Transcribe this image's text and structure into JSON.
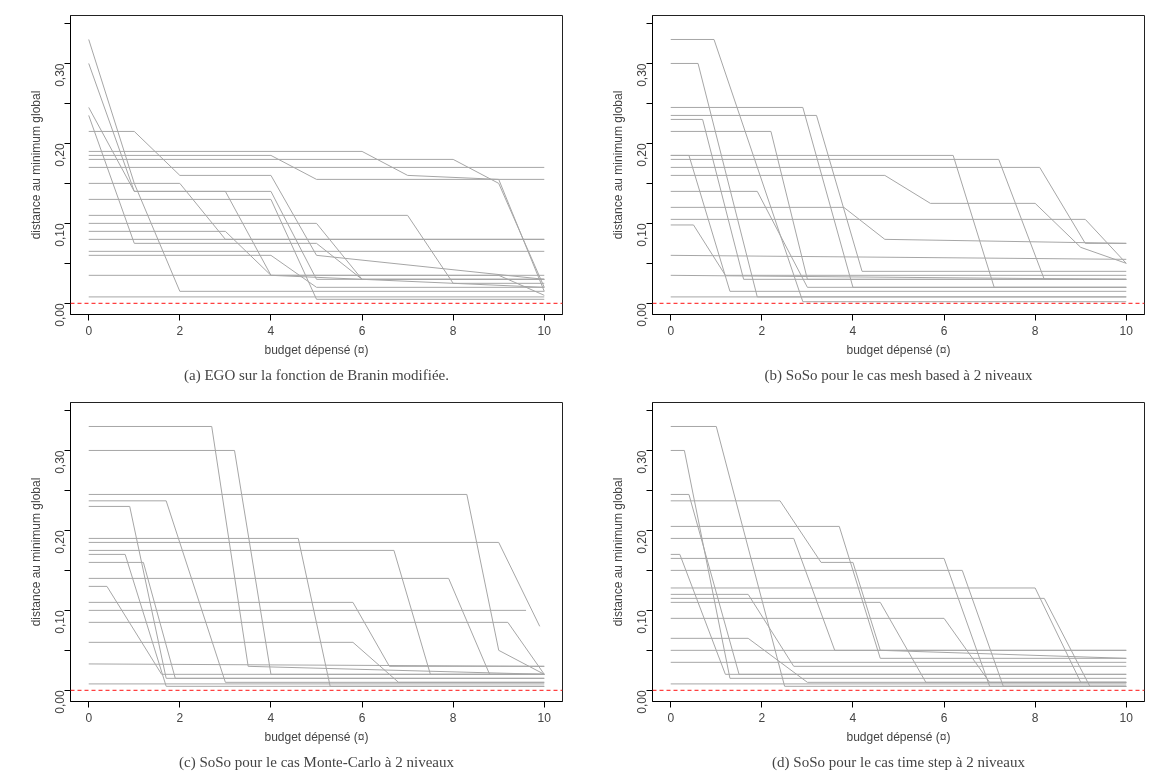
{
  "chart_data": [
    {
      "type": "line",
      "title": "(a) EGO sur la fonction de Branin modifiée.",
      "xlabel": "budget dépensé (¤)",
      "ylabel": "distance au minimum global",
      "xlim": [
        -0.4,
        10.4
      ],
      "ylim": [
        -0.014,
        0.36
      ],
      "xticks": [
        0,
        2,
        4,
        6,
        8,
        10
      ],
      "yticks": [
        {
          "value": 0,
          "label": "0,00"
        },
        {
          "value": 0.05,
          "label": null
        },
        {
          "value": 0.1,
          "label": "0,10"
        },
        {
          "value": 0.15,
          "label": null
        },
        {
          "value": 0.2,
          "label": "0,20"
        },
        {
          "value": 0.25,
          "label": null
        },
        {
          "value": 0.3,
          "label": "0,30"
        },
        {
          "value": 0.35,
          "label": null
        }
      ],
      "grid": false,
      "marker": "none",
      "line_style": "solid",
      "ref_lines": [
        {
          "axis": "y",
          "value": 0,
          "label": null,
          "color": "#ff4040",
          "line_style": "dashed"
        }
      ],
      "series": [
        {
          "color": "#a6a6a6",
          "x": [
            0,
            1,
            2,
            10
          ],
          "values": [
            0.33,
            0.15,
            0.015,
            0.015
          ]
        },
        {
          "color": "#a6a6a6",
          "x": [
            0,
            1,
            3,
            4,
            10
          ],
          "values": [
            0.3,
            0.14,
            0.14,
            0.035,
            0.02
          ]
        },
        {
          "color": "#a6a6a6",
          "x": [
            0,
            1,
            4,
            5,
            10
          ],
          "values": [
            0.245,
            0.14,
            0.14,
            0.03,
            0.03
          ]
        },
        {
          "color": "#a6a6a6",
          "x": [
            0,
            1,
            5,
            6,
            10
          ],
          "values": [
            0.235,
            0.075,
            0.075,
            0.03,
            0.03
          ]
        },
        {
          "color": "#a6a6a6",
          "x": [
            0,
            1,
            2,
            4,
            5,
            10
          ],
          "values": [
            0.215,
            0.215,
            0.16,
            0.16,
            0.06,
            0.03
          ]
        },
        {
          "color": "#a6a6a6",
          "x": [
            0,
            6,
            7,
            9,
            10
          ],
          "values": [
            0.19,
            0.19,
            0.16,
            0.155,
            0.015
          ]
        },
        {
          "color": "#a6a6a6",
          "x": [
            0,
            10
          ],
          "values": [
            0.17,
            0.17
          ]
        },
        {
          "color": "#a6a6a6",
          "x": [
            0,
            4,
            5,
            10
          ],
          "values": [
            0.185,
            0.185,
            0.155,
            0.155
          ]
        },
        {
          "color": "#a6a6a6",
          "x": [
            0,
            8,
            9,
            10
          ],
          "values": [
            0.18,
            0.18,
            0.15,
            0.02
          ]
        },
        {
          "color": "#a6a6a6",
          "x": [
            0,
            4,
            5,
            10
          ],
          "values": [
            0.13,
            0.13,
            0.005,
            0.005
          ]
        },
        {
          "color": "#a6a6a6",
          "x": [
            0,
            7,
            8,
            10
          ],
          "values": [
            0.11,
            0.11,
            0.025,
            0.025
          ]
        },
        {
          "color": "#a6a6a6",
          "x": [
            0,
            5,
            6,
            10
          ],
          "values": [
            0.1,
            0.1,
            0.03,
            0.03
          ]
        },
        {
          "color": "#a6a6a6",
          "x": [
            0,
            3,
            4,
            10
          ],
          "values": [
            0.09,
            0.09,
            0.035,
            0.035
          ]
        },
        {
          "color": "#a6a6a6",
          "x": [
            0,
            10
          ],
          "values": [
            0.08,
            0.08
          ]
        },
        {
          "color": "#a6a6a6",
          "x": [
            0,
            10
          ],
          "values": [
            0.065,
            0.065
          ]
        },
        {
          "color": "#a6a6a6",
          "x": [
            0,
            4,
            5,
            10
          ],
          "values": [
            0.06,
            0.06,
            0.02,
            0.02
          ]
        },
        {
          "color": "#a6a6a6",
          "x": [
            0,
            9,
            10
          ],
          "values": [
            0.035,
            0.035,
            0.01
          ]
        },
        {
          "color": "#a6a6a6",
          "x": [
            0,
            2,
            3,
            10
          ],
          "values": [
            0.15,
            0.15,
            0.08,
            0.08
          ]
        },
        {
          "color": "#a6a6a6",
          "x": [
            0,
            10
          ],
          "values": [
            0.008,
            0.008
          ]
        }
      ]
    },
    {
      "type": "line",
      "title": "(b) SoSo pour le cas mesh based à 2 niveaux",
      "xlabel": "budget dépensé (¤)",
      "ylabel": "distance au minimum global",
      "xlim": [
        -0.4,
        10.4
      ],
      "ylim": [
        -0.014,
        0.36
      ],
      "xticks": [
        0,
        2,
        4,
        6,
        8,
        10
      ],
      "yticks": [
        {
          "value": 0,
          "label": "0,00"
        },
        {
          "value": 0.05,
          "label": null
        },
        {
          "value": 0.1,
          "label": "0,10"
        },
        {
          "value": 0.15,
          "label": null
        },
        {
          "value": 0.2,
          "label": "0,20"
        },
        {
          "value": 0.25,
          "label": null
        },
        {
          "value": 0.3,
          "label": "0,30"
        },
        {
          "value": 0.35,
          "label": null
        }
      ],
      "grid": false,
      "marker": "none",
      "line_style": "solid",
      "ref_lines": [
        {
          "axis": "y",
          "value": 0,
          "label": null,
          "color": "#ff4040",
          "line_style": "dashed"
        }
      ],
      "series": [
        {
          "color": "#a6a6a6",
          "x": [
            0,
            0.95,
            2.9,
            10
          ],
          "values": [
            0.33,
            0.33,
            0.002,
            0.002
          ]
        },
        {
          "color": "#a6a6a6",
          "x": [
            0,
            0.6,
            1.9,
            10
          ],
          "values": [
            0.3,
            0.3,
            0.008,
            0.008
          ]
        },
        {
          "color": "#a6a6a6",
          "x": [
            0,
            2.9,
            4,
            10
          ],
          "values": [
            0.245,
            0.245,
            0.02,
            0.02
          ]
        },
        {
          "color": "#a6a6a6",
          "x": [
            0,
            3.2,
            4.2,
            10
          ],
          "values": [
            0.235,
            0.235,
            0.04,
            0.04
          ]
        },
        {
          "color": "#a6a6a6",
          "x": [
            0,
            0.7,
            1.6,
            10
          ],
          "values": [
            0.23,
            0.23,
            0.03,
            0.03
          ]
        },
        {
          "color": "#a6a6a6",
          "x": [
            0,
            2.2,
            3,
            10
          ],
          "values": [
            0.215,
            0.215,
            0.03,
            0.03
          ]
        },
        {
          "color": "#a6a6a6",
          "x": [
            0,
            6.2,
            7.1,
            10
          ],
          "values": [
            0.185,
            0.185,
            0.02,
            0.02
          ]
        },
        {
          "color": "#a6a6a6",
          "x": [
            0,
            4.7,
            5.7,
            8,
            9,
            10
          ],
          "values": [
            0.16,
            0.16,
            0.125,
            0.125,
            0.07,
            0.05
          ]
        },
        {
          "color": "#a6a6a6",
          "x": [
            0,
            8.1,
            9.1,
            10
          ],
          "values": [
            0.17,
            0.17,
            0.075,
            0.075
          ]
        },
        {
          "color": "#a6a6a6",
          "x": [
            0,
            7.2,
            8.2,
            10
          ],
          "values": [
            0.18,
            0.18,
            0.03,
            0.03
          ]
        },
        {
          "color": "#a6a6a6",
          "x": [
            0,
            0.4,
            1.3,
            10
          ],
          "values": [
            0.185,
            0.185,
            0.015,
            0.015
          ]
        },
        {
          "color": "#a6a6a6",
          "x": [
            0,
            1.9,
            3,
            10
          ],
          "values": [
            0.14,
            0.14,
            0.02,
            0.02
          ]
        },
        {
          "color": "#a6a6a6",
          "x": [
            0,
            9.1,
            10
          ],
          "values": [
            0.105,
            0.105,
            0.05
          ]
        },
        {
          "color": "#a6a6a6",
          "x": [
            0,
            3.8,
            4.7,
            10
          ],
          "values": [
            0.12,
            0.12,
            0.08,
            0.075
          ]
        },
        {
          "color": "#a6a6a6",
          "x": [
            0,
            0.5,
            1.2,
            10
          ],
          "values": [
            0.098,
            0.098,
            0.035,
            0.035
          ]
        },
        {
          "color": "#a6a6a6",
          "x": [
            0,
            10
          ],
          "values": [
            0.06,
            0.055
          ]
        },
        {
          "color": "#a6a6a6",
          "x": [
            0,
            10
          ],
          "values": [
            0.035,
            0.03
          ]
        },
        {
          "color": "#a6a6a6",
          "x": [
            0,
            10
          ],
          "values": [
            0.008,
            0.008
          ]
        }
      ]
    },
    {
      "type": "line",
      "title": "(c) SoSo pour le cas Monte-Carlo à 2 niveaux",
      "xlabel": "budget dépensé (¤)",
      "ylabel": "distance au minimum global",
      "xlim": [
        -0.4,
        10.4
      ],
      "ylim": [
        -0.014,
        0.36
      ],
      "xticks": [
        0,
        2,
        4,
        6,
        8,
        10
      ],
      "yticks": [
        {
          "value": 0,
          "label": "0,00"
        },
        {
          "value": 0.05,
          "label": null
        },
        {
          "value": 0.1,
          "label": "0,10"
        },
        {
          "value": 0.15,
          "label": null
        },
        {
          "value": 0.2,
          "label": "0,20"
        },
        {
          "value": 0.25,
          "label": null
        },
        {
          "value": 0.3,
          "label": "0,30"
        },
        {
          "value": 0.35,
          "label": null
        }
      ],
      "grid": false,
      "marker": "none",
      "line_style": "solid",
      "ref_lines": [
        {
          "axis": "y",
          "value": 0,
          "label": null,
          "color": "#ff4040",
          "line_style": "dashed"
        }
      ],
      "series": [
        {
          "color": "#a6a6a6",
          "x": [
            0,
            2.7,
            3.5,
            10
          ],
          "values": [
            0.33,
            0.33,
            0.03,
            0.02
          ]
        },
        {
          "color": "#a6a6a6",
          "x": [
            0,
            3.2,
            4,
            10
          ],
          "values": [
            0.3,
            0.3,
            0.02,
            0.02
          ]
        },
        {
          "color": "#a6a6a6",
          "x": [
            0,
            8.3,
            9,
            10
          ],
          "values": [
            0.245,
            0.245,
            0.05,
            0.02
          ]
        },
        {
          "color": "#a6a6a6",
          "x": [
            0,
            1.7,
            3,
            10
          ],
          "values": [
            0.237,
            0.237,
            0.01,
            0.01
          ]
        },
        {
          "color": "#a6a6a6",
          "x": [
            0,
            0.9,
            1.7,
            10
          ],
          "values": [
            0.23,
            0.23,
            0.015,
            0.015
          ]
        },
        {
          "color": "#a6a6a6",
          "x": [
            0,
            9,
            9.9
          ],
          "values": [
            0.185,
            0.185,
            0.08
          ]
        },
        {
          "color": "#a6a6a6",
          "x": [
            0,
            4.6,
            5.3,
            10
          ],
          "values": [
            0.19,
            0.19,
            0.005,
            0.005
          ]
        },
        {
          "color": "#a6a6a6",
          "x": [
            0,
            6.7,
            7.5,
            10
          ],
          "values": [
            0.175,
            0.175,
            0.02,
            0.02
          ]
        },
        {
          "color": "#a6a6a6",
          "x": [
            0,
            7.9,
            8.8,
            10
          ],
          "values": [
            0.14,
            0.14,
            0.02,
            0.02
          ]
        },
        {
          "color": "#a6a6a6",
          "x": [
            0,
            0.8,
            1.7,
            10
          ],
          "values": [
            0.17,
            0.17,
            0.005,
            0.005
          ]
        },
        {
          "color": "#a6a6a6",
          "x": [
            0,
            1.2,
            1.9,
            10
          ],
          "values": [
            0.16,
            0.16,
            0.015,
            0.015
          ]
        },
        {
          "color": "#a6a6a6",
          "x": [
            0,
            9.6
          ],
          "values": [
            0.1,
            0.1
          ]
        },
        {
          "color": "#a6a6a6",
          "x": [
            0,
            5.8,
            6.6,
            10
          ],
          "values": [
            0.11,
            0.11,
            0.03,
            0.03
          ]
        },
        {
          "color": "#a6a6a6",
          "x": [
            0,
            9.2,
            10
          ],
          "values": [
            0.085,
            0.085,
            0.02
          ]
        },
        {
          "color": "#a6a6a6",
          "x": [
            0,
            0.4,
            1.6,
            10
          ],
          "values": [
            0.13,
            0.13,
            0.02,
            0.02
          ]
        },
        {
          "color": "#a6a6a6",
          "x": [
            0,
            5.8,
            6.8,
            10
          ],
          "values": [
            0.06,
            0.06,
            0.01,
            0.01
          ]
        },
        {
          "color": "#a6a6a6",
          "x": [
            0,
            10
          ],
          "values": [
            0.033,
            0.03
          ]
        },
        {
          "color": "#a6a6a6",
          "x": [
            0,
            10
          ],
          "values": [
            0.008,
            0.008
          ]
        }
      ]
    },
    {
      "type": "line",
      "title": "(d) SoSo pour le cas time step à 2 niveaux",
      "xlabel": "budget dépensé (¤)",
      "ylabel": "distance au minimum global",
      "xlim": [
        -0.4,
        10.4
      ],
      "ylim": [
        -0.014,
        0.36
      ],
      "xticks": [
        0,
        2,
        4,
        6,
        8,
        10
      ],
      "yticks": [
        {
          "value": 0,
          "label": "0,00"
        },
        {
          "value": 0.05,
          "label": null
        },
        {
          "value": 0.1,
          "label": "0,10"
        },
        {
          "value": 0.15,
          "label": null
        },
        {
          "value": 0.2,
          "label": "0,20"
        },
        {
          "value": 0.25,
          "label": null
        },
        {
          "value": 0.3,
          "label": "0,30"
        },
        {
          "value": 0.35,
          "label": null
        }
      ],
      "grid": false,
      "marker": "none",
      "line_style": "solid",
      "ref_lines": [
        {
          "axis": "y",
          "value": 0,
          "label": null,
          "color": "#ff4040",
          "line_style": "dashed"
        }
      ],
      "series": [
        {
          "color": "#a6a6a6",
          "x": [
            0,
            1,
            2.5,
            10
          ],
          "values": [
            0.33,
            0.33,
            0.005,
            0.005
          ]
        },
        {
          "color": "#a6a6a6",
          "x": [
            0,
            0.3,
            1.3,
            10
          ],
          "values": [
            0.3,
            0.3,
            0.015,
            0.015
          ]
        },
        {
          "color": "#a6a6a6",
          "x": [
            0,
            0.4,
            1.5,
            10
          ],
          "values": [
            0.245,
            0.245,
            0.02,
            0.02
          ]
        },
        {
          "color": "#a6a6a6",
          "x": [
            0,
            2.4,
            3.3,
            4,
            4.6,
            10
          ],
          "values": [
            0.237,
            0.237,
            0.16,
            0.16,
            0.05,
            0.04
          ]
        },
        {
          "color": "#a6a6a6",
          "x": [
            0,
            3.7,
            4.6,
            10
          ],
          "values": [
            0.205,
            0.205,
            0.04,
            0.04
          ]
        },
        {
          "color": "#a6a6a6",
          "x": [
            0,
            6,
            7,
            10
          ],
          "values": [
            0.165,
            0.165,
            0.005,
            0.005
          ]
        },
        {
          "color": "#a6a6a6",
          "x": [
            0,
            6.4,
            7.3,
            10
          ],
          "values": [
            0.15,
            0.15,
            0.005,
            0.005
          ]
        },
        {
          "color": "#a6a6a6",
          "x": [
            0,
            8.2,
            9.2,
            10
          ],
          "values": [
            0.115,
            0.115,
            0.005,
            0.005
          ]
        },
        {
          "color": "#a6a6a6",
          "x": [
            0,
            8,
            9,
            10
          ],
          "values": [
            0.128,
            0.128,
            0.01,
            0.01
          ]
        },
        {
          "color": "#a6a6a6",
          "x": [
            0,
            0.2,
            1.2,
            10
          ],
          "values": [
            0.17,
            0.17,
            0.02,
            0.02
          ]
        },
        {
          "color": "#a6a6a6",
          "x": [
            0,
            2.7,
            3.6,
            10
          ],
          "values": [
            0.19,
            0.19,
            0.05,
            0.05
          ]
        },
        {
          "color": "#a6a6a6",
          "x": [
            0,
            4.6,
            5.6,
            10
          ],
          "values": [
            0.11,
            0.11,
            0.01,
            0.01
          ]
        },
        {
          "color": "#a6a6a6",
          "x": [
            0,
            1.7,
            2.7,
            10
          ],
          "values": [
            0.12,
            0.12,
            0.03,
            0.03
          ]
        },
        {
          "color": "#a6a6a6",
          "x": [
            0,
            10
          ],
          "values": [
            0.05,
            0.05
          ]
        },
        {
          "color": "#a6a6a6",
          "x": [
            0,
            6,
            7,
            10
          ],
          "values": [
            0.09,
            0.09,
            0.01,
            0.01
          ]
        },
        {
          "color": "#a6a6a6",
          "x": [
            0,
            1.7,
            3,
            10
          ],
          "values": [
            0.065,
            0.065,
            0.01,
            0.01
          ]
        },
        {
          "color": "#a6a6a6",
          "x": [
            0,
            10
          ],
          "values": [
            0.035,
            0.035
          ]
        },
        {
          "color": "#a6a6a6",
          "x": [
            0,
            10
          ],
          "values": [
            0.008,
            0.008
          ]
        }
      ]
    }
  ]
}
